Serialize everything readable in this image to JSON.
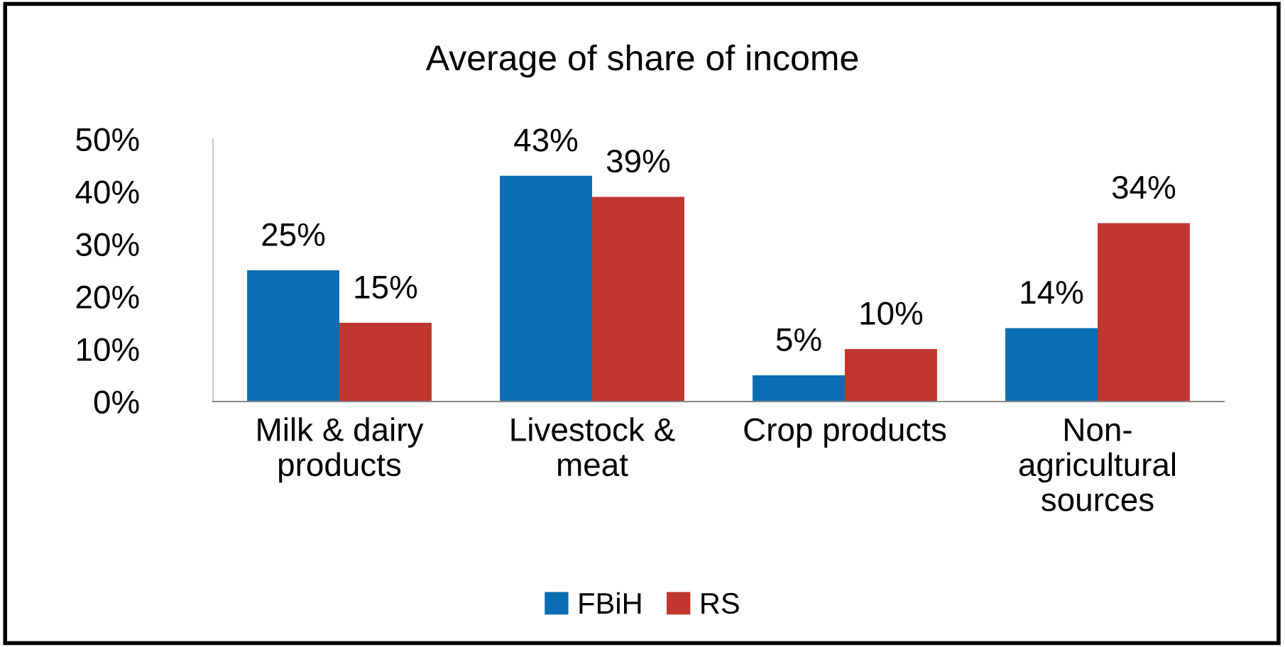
{
  "chart_data": {
    "type": "bar",
    "title": "Average of share of income",
    "categories": [
      "Milk & dairy\nproducts",
      "Livestock &\nmeat",
      "Crop products",
      "Non-\nagricultural\nsources"
    ],
    "series": [
      {
        "name": "FBiH",
        "color": "#0b6db3",
        "values": [
          25,
          43,
          5,
          14
        ],
        "value_labels": [
          "25%",
          "43%",
          "5%",
          "14%"
        ]
      },
      {
        "name": "RS",
        "color": "#c0372f",
        "values": [
          15,
          39,
          10,
          34
        ],
        "value_labels": [
          "15%",
          "39%",
          "10%",
          "34%"
        ]
      }
    ],
    "ylim": [
      0,
      50
    ],
    "yticks": [
      {
        "value": 0,
        "label": "0%"
      },
      {
        "value": 10,
        "label": "10%"
      },
      {
        "value": 20,
        "label": "20%"
      },
      {
        "value": 30,
        "label": "30%"
      },
      {
        "value": 40,
        "label": "40%"
      },
      {
        "value": 50,
        "label": "50%"
      }
    ],
    "grid": false,
    "legend": "bottom"
  }
}
